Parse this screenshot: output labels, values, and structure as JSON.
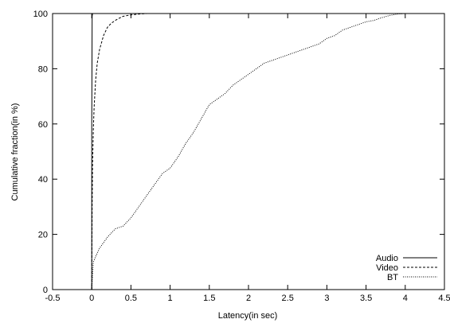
{
  "chart_data": {
    "type": "line",
    "title": "",
    "xlabel": "Latency(in sec)",
    "ylabel": "Cumulative fraction(in %)",
    "xlim": [
      -0.5,
      4.5
    ],
    "ylim": [
      0,
      100
    ],
    "x_ticks": [
      "-0.5",
      "0",
      "0.5",
      "1",
      "1.5",
      "2",
      "2.5",
      "3",
      "3.5",
      "4",
      "4.5"
    ],
    "y_ticks": [
      "0",
      "20",
      "40",
      "60",
      "80",
      "100"
    ],
    "grid": false,
    "legend_position": "bottom-right",
    "series": [
      {
        "name": "Audio",
        "dash": "solid",
        "x": [
          0,
          0,
          0.005,
          0.01,
          4.5
        ],
        "y": [
          0,
          60,
          99,
          100,
          100
        ]
      },
      {
        "name": "Video",
        "dash": "dashed",
        "x": [
          0,
          0.005,
          0.01,
          0.02,
          0.03,
          0.05,
          0.07,
          0.1,
          0.13,
          0.15,
          0.2,
          0.25,
          0.3,
          0.35,
          0.4,
          0.5,
          0.6,
          0.7,
          4.5
        ],
        "y": [
          0,
          30,
          45,
          58,
          66,
          76,
          82,
          87,
          90,
          92,
          95,
          96.5,
          97.5,
          98.3,
          99,
          99.5,
          99.8,
          100,
          100
        ]
      },
      {
        "name": "BT",
        "dash": "dotted",
        "x": [
          0,
          0.02,
          0.05,
          0.1,
          0.2,
          0.3,
          0.4,
          0.5,
          0.6,
          0.7,
          0.8,
          0.9,
          1.0,
          1.1,
          1.2,
          1.3,
          1.4,
          1.5,
          1.6,
          1.7,
          1.8,
          1.9,
          2.0,
          2.1,
          2.2,
          2.3,
          2.4,
          2.5,
          2.6,
          2.7,
          2.8,
          2.9,
          3.0,
          3.1,
          3.2,
          3.3,
          3.4,
          3.5,
          3.6,
          3.7,
          3.8,
          3.9,
          4.0,
          4.5
        ],
        "y": [
          0,
          10,
          12,
          15,
          19,
          22,
          23,
          26,
          30,
          34,
          38,
          42,
          44,
          48,
          53,
          57,
          62,
          67,
          69,
          71,
          74,
          76,
          78,
          80,
          82,
          83,
          84,
          85,
          86,
          87,
          88,
          89,
          91,
          92,
          94,
          95,
          96,
          97,
          97.5,
          98.5,
          99.3,
          99.8,
          100,
          100
        ]
      }
    ]
  }
}
